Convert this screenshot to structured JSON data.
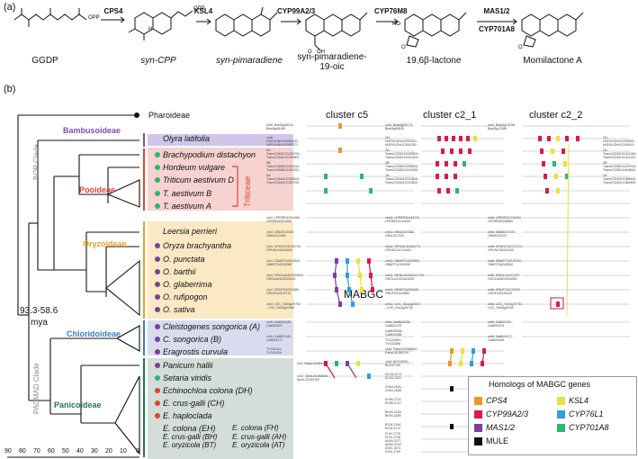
{
  "panel_a": {
    "letter": "(a)",
    "gene_steps": [
      "CPS4",
      "KSL4",
      "CYP99A2/3",
      "CYP76M8",
      "MAS1/2",
      "CYP701A8"
    ],
    "compounds": [
      "GGDP",
      "syn-CPP",
      "syn-pimaradiene",
      "syn-pimaradiene-19-oic",
      "19,6β-lactone",
      "Momilactone A"
    ],
    "substituents": [
      "OPP",
      "OPP",
      "H",
      "OH",
      "O",
      "HO",
      "O",
      "O"
    ]
  },
  "panel_b": {
    "letter": "(b)",
    "outgroup": "Pharoideae",
    "subfamilies": {
      "bambusoideae": "Bambusoideae",
      "pooideae": "Pooideae",
      "oryzoideae": "Oryzoideae",
      "chloridoideae": "Chloridoideae",
      "panicoideae": "Panicoideae"
    },
    "clades": {
      "bop": "BOP Clade",
      "pacmad": "PACMAD Clade"
    },
    "triticeae": "Triticeae",
    "divergence": "93.3-58.6",
    "divergence_unit": "mya",
    "taxa": [
      "Olyra latifolia",
      "Brachypodium distachyon",
      "Hordeum vulgare",
      "Triticum aestivum D",
      "T. aestivum B",
      "T. aestivum A",
      "Leersia perrieri",
      "Oryza brachyantha",
      "O. punctata",
      "O. barthii",
      "O. glaberrima",
      "O. rufipogon",
      "O. sativa",
      "Cleistogenes songorica (A)",
      "C. songorica (B)",
      "Eragrostis curvula",
      "Panicum hallii",
      "Setaria viridis",
      "Echinochloa colona (DH)",
      "E. crus-galli (CH)",
      "E. haploclada",
      "E. colona (EH)",
      "E. crus-galli (BH)",
      "E. oryzicola (BT)",
      "E. colona (FH)",
      "E. crus-galli (AH)",
      "E. oryzicola (AT)"
    ],
    "axis_ticks": [
      "90",
      "80",
      "70",
      "60",
      "50",
      "40",
      "30",
      "20",
      "10",
      "0"
    ],
    "clusters": [
      "cluster c5",
      "cluster c2_1",
      "cluster c2_2"
    ],
    "mabgc_label": "MABGC",
    "gene_labels_c5": [
      "chr5: Brad3g36131-",
      "Brad3g36160",
      "chr6:",
      "HORVU6Hr1G083180-",
      "HORVU6Hr1G083270",
      "6D:",
      "TraesCS6D01G330700-",
      "TraesCS6D01G330800",
      "6B:",
      "TraesCS6B01G331200-",
      "TraesCS6B01G331300",
      "6A:",
      "TraesCS6A01G332600-",
      "TraesCS6A01G332700",
      "chr4: LPERR04G01960-",
      "LPERR04G01980",
      "chr4: OB04G12320-",
      "OB04G12460",
      "chr4: OPUNC04G02700-",
      "OPUNC04G03000",
      "chr4: OBART04G02800-",
      "OBART04G03080",
      "chr4: ORGLA04G0203000-",
      "ORGLA04G0203100",
      "chr4: ORUFI04G02480-",
      "ORUFI04G02710",
      "chr4: LOC_Os04g09760",
      "- LOC_Os04g10060",
      "chr5: Ca6000445-",
      "Ca6000457",
      "chr5: Ca6B01180-",
      "Ca6B01177",
      "TVG40111-",
      "TVG40426",
      "chr1:Pahal.1G05410",
      "chr2: Sevir.2G153600-",
      "Sevir.2G153700"
    ],
    "gene_labels_c2_1": [
      "chr2: Brad3g05773-",
      "Brad3g05830",
      "2H:",
      "HORVU2Hr1G000180-",
      "HORVU2Hr1G000780",
      "2D:",
      "TraesCS2D01G008900-",
      "TraesCS2D01G010100",
      "2B:",
      "TraesCS2B01G008000-",
      "TraesCS2B01G010900",
      "2A:",
      "TraesCS2A01G010600-",
      "TraesCS2A01G013600",
      "chr11: LPERR11G19230-",
      "LPERR11G19300",
      "chr11: OB11G27180-",
      "OB11G27320",
      "chr11: OPUNC11G16270-",
      "OPUNC11G16400",
      "chr11: OBART11G20860-",
      "OBART11G20990",
      "chr11: ORGLA11G0161200-",
      "ORGLA11G0161500",
      "chr11: ORUFI11G04480-",
      "ORUFI11G04580",
      "chr11: LOC_Os11g45400",
      "- LOC_Os11g45740",
      "chr6: Ca6B01225-",
      "Ca6B01237",
      "Ca6B00306-",
      "Ca6B00086",
      "TVG23481-",
      "TVG23488",
      "chr8: Pahal.8G258600-",
      "Pahal.8G260700",
      "chr8: BG034000-",
      "BG237700",
      "DLG6.2272-",
      "DLG6.2321",
      "CH04.2621-",
      "CH04.2648",
      "EH06.2732-",
      "EH06.2742",
      "BH04.2230-",
      "BH04.2289",
      "BT04.2194-",
      "BT04.2172",
      "FL04.1776-",
      "FL04.1796",
      "AH04.2377-",
      "AH04.2249",
      "AT04.1673-",
      "AT04.1726"
    ],
    "gene_labels_c2_2": [
      "chr2: Brad3g13108-",
      "Brad3g13186",
      "2H:",
      "HORVU2Hr1G009030-",
      "HORVU2Hr1G009150",
      "2D:",
      "TraesCS2D01G421060-",
      "TraesCS2D01G421200",
      "2B:",
      "TraesCS2B01G403700-",
      "TraesCS2B01G404600",
      "2A:",
      "TraesCS2A01G384600-",
      "TraesCS2A01G384900",
      "chr6: LPERR06G36680-",
      "LPERR06G36850",
      "chr6: OB06G31920-",
      "OB06G31970",
      "chr6: OPUNC06G22240-",
      "OPUNC06G22400",
      "chr6: OBART06G25390-",
      "OBART06G25510",
      "chr6: ORGLA06G0200-",
      "ORGLA06G0204300",
      "chr6: ORUFI06G26090-",
      "ORUFI06G26120",
      "chr6: LOC_Os06g39784-",
      "LOC_Os06g40010",
      "chr5: Ca6000361-",
      "Ca6B00374",
      "chr5: Ca6000071-",
      "Ca6B00082"
    ],
    "legend": {
      "title": "Homologs of MABGC genes",
      "items": [
        {
          "label": "CPS4",
          "color": "#f0932b"
        },
        {
          "label": "KSL4",
          "color": "#e8e23a"
        },
        {
          "label": "CYP99A2/3",
          "color": "#d81b48"
        },
        {
          "label": "CYP76L1",
          "color": "#2e9fd8"
        },
        {
          "label": "MAS1/2",
          "color": "#7a3fa0"
        },
        {
          "label": "CYP701A8",
          "color": "#2bb673"
        },
        {
          "label": "MULE",
          "color": "#111111"
        }
      ]
    },
    "colors": {
      "bambusoideae": "#7a4fb3",
      "pooideae": "#e0442e",
      "oryzoideae": "#f0a020",
      "chloridoideae": "#3a7ec2",
      "panicoideae": "#1e7a4a",
      "band_bamb": "#cfc6ea",
      "band_pooid": "#f6d2d0",
      "band_oryz": "#fbe9c4",
      "band_chlor": "#d7dcee",
      "band_panic": "#d4ddd7",
      "dot_green": "#2bb673",
      "dot_purple": "#7a3fa0"
    }
  }
}
